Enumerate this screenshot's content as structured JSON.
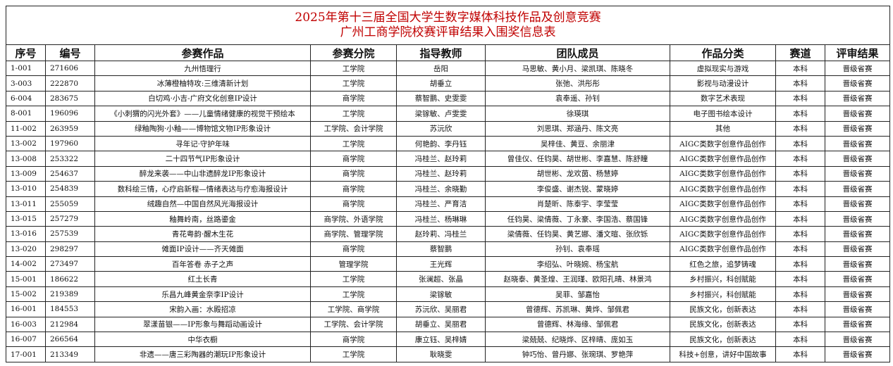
{
  "header": {
    "title": [
      "2025年第十三届全国大学生数字媒体科技作品及创意竞赛",
      "广州工商学院校赛评审结果入围奖信息表"
    ]
  },
  "table": {
    "columns": [
      "序号",
      "编号",
      "参赛作品",
      "参赛分院",
      "指导教师",
      "团队成员",
      "作品分类",
      "赛道",
      "评审结果"
    ],
    "rows": [
      [
        "1-001",
        "271606",
        "九州悟理行",
        "工学院",
        "岳阳",
        "马思敏、黄小月、梁凯琪、陈晓冬",
        "虚拟现实与游戏",
        "本科",
        "晋级省赛"
      ],
      [
        "3-003",
        "222870",
        "冰薄橙柚特攻:三维清新计划",
        "工学院",
        "胡垂立",
        "张弛、洪彤彤",
        "影视与动漫设计",
        "本科",
        "晋级省赛"
      ],
      [
        "6-004",
        "283675",
        "白切鸡·小吉-广府文化创意IP设计",
        "商学院",
        "蔡智鹏、史雯雯",
        "袁奉遥、孙钊",
        "数字艺术表现",
        "本科",
        "晋级省赛"
      ],
      [
        "8-001",
        "196096",
        "《小刺猬的闪光外套》——儿童情绪健康的视觉干预绘本",
        "工学院",
        "梁镓敏、卢雯雯",
        "徐瑛琪",
        "电子图书绘本设计",
        "本科",
        "晋级省赛"
      ],
      [
        "11-002",
        "263959",
        "绿釉陶狗·小釉——博物馆文物IP形象设计",
        "工学院、会计学院",
        "苏沅欣",
        "刘思琪、郑涵丹、陈文亮",
        "其他",
        "本科",
        "晋级省赛"
      ],
      [
        "13-002",
        "197960",
        "寻年记·守护年味",
        "工学院",
        "何艳韵、李丹钰",
        "吴梓佳、黄豆、余丽津",
        "AIGC类数字创意作品创作",
        "本科",
        "晋级省赛"
      ],
      [
        "13-008",
        "253322",
        "二十四节气IP形象设计",
        "商学院",
        "冯桂兰、赵玲莉",
        "曾佳仪、任钧昊、胡世彬、李嘉慧、陈舒瞳",
        "AIGC类数字创意作品创作",
        "本科",
        "晋级省赛"
      ],
      [
        "13-009",
        "254637",
        "醉龙来袭——中山非遗醉龙IP形象设计",
        "商学院",
        "冯桂兰、赵玲莉",
        "胡世彬、龙欢茵、杨慧婷",
        "AIGC类数字创意作品创作",
        "本科",
        "晋级省赛"
      ],
      [
        "13-010",
        "254839",
        "数科绘三情，心疗启新程—情绪表达与疗愈海报设计",
        "商学院",
        "冯桂兰、余晓勤",
        "李俊盛、谢杰锐、蒙晓婷",
        "AIGC类数字创意作品创作",
        "本科",
        "晋级省赛"
      ],
      [
        "13-011",
        "255059",
        "绒趣自然—中国自然风光海报设计",
        "商学院",
        "冯桂兰、严育洁",
        "肖楚昕、陈泰宇、李莹莹",
        "AIGC类数字创意作品创作",
        "本科",
        "晋级省赛"
      ],
      [
        "13-015",
        "257279",
        "釉舞岭南，丝路鎏金",
        "商学院、外语学院",
        "冯桂兰、杨琳琳",
        "任钧昊、梁倩薇、丁永豪、李国浩、蔡国锋",
        "AIGC类数字创意作品创作",
        "本科",
        "晋级省赛"
      ],
      [
        "13-016",
        "257539",
        "青花粤韵·醒木生花",
        "商学院、管理学院",
        "赵玲莉、冯桂兰",
        "梁倩薇、任钧昊、黄艺娜、潘文暄、张欣铄",
        "AIGC类数字创意作品创作",
        "本科",
        "晋级省赛"
      ],
      [
        "13-020",
        "298297",
        "傩面IP设计——齐天傩面",
        "商学院",
        "蔡智鹏",
        "孙钊、袁奉瑶",
        "AIGC类数字创意作品创作",
        "本科",
        "晋级省赛"
      ],
      [
        "14-002",
        "273497",
        "百年答卷 赤子之声",
        "管理学院",
        "王光辉",
        "李绍弘、叶晓婉、杨宝航",
        "红色之旅，追梦铸魂",
        "本科",
        "晋级省赛"
      ],
      [
        "15-001",
        "186622",
        "红土长青",
        "工学院",
        "张澜超、张晶",
        "赵晓泰、黄圣煌、王润瑾、欧阳孔晴、林景鸿",
        "乡村振兴，科创赋能",
        "本科",
        "晋级省赛"
      ],
      [
        "15-002",
        "219389",
        "乐昌九峰黄金奈李IP设计",
        "工学院",
        "梁镓敏",
        "吴菲、邹嘉怡",
        "乡村振兴，科创赋能",
        "本科",
        "晋级省赛"
      ],
      [
        "16-001",
        "184553",
        "宋韵入画：水殿招凉",
        "工学院、商学院",
        "苏沅欣、吴丽君",
        "曾德辉、苏凯琳、黄烨、邹佩君",
        "民族文化，创新表达",
        "本科",
        "晋级省赛"
      ],
      [
        "16-003",
        "212984",
        "翠漾苗银——IP形象与舞蹈动画设计",
        "工学院、会计学院",
        "胡垂立、吴丽君",
        "曾德辉、林海缘、邹佩君",
        "民族文化，创新表达",
        "本科",
        "晋级省赛"
      ],
      [
        "16-007",
        "266564",
        "中华衣橱",
        "商学院",
        "康立钰、吴梓婧",
        "梁兢兢、纪晓烨、区梓晴、庞如玉",
        "民族文化，创新表达",
        "本科",
        "晋级省赛"
      ],
      [
        "17-001",
        "213349",
        "非遗——唐三彩陶器的潮玩IP形象设计",
        "工学院",
        "耿晓雯",
        "钟巧怡、曾丹娜、张琬琪、罗艳萍",
        "科技+创意，讲好中国故事",
        "本科",
        "晋级省赛"
      ]
    ]
  }
}
